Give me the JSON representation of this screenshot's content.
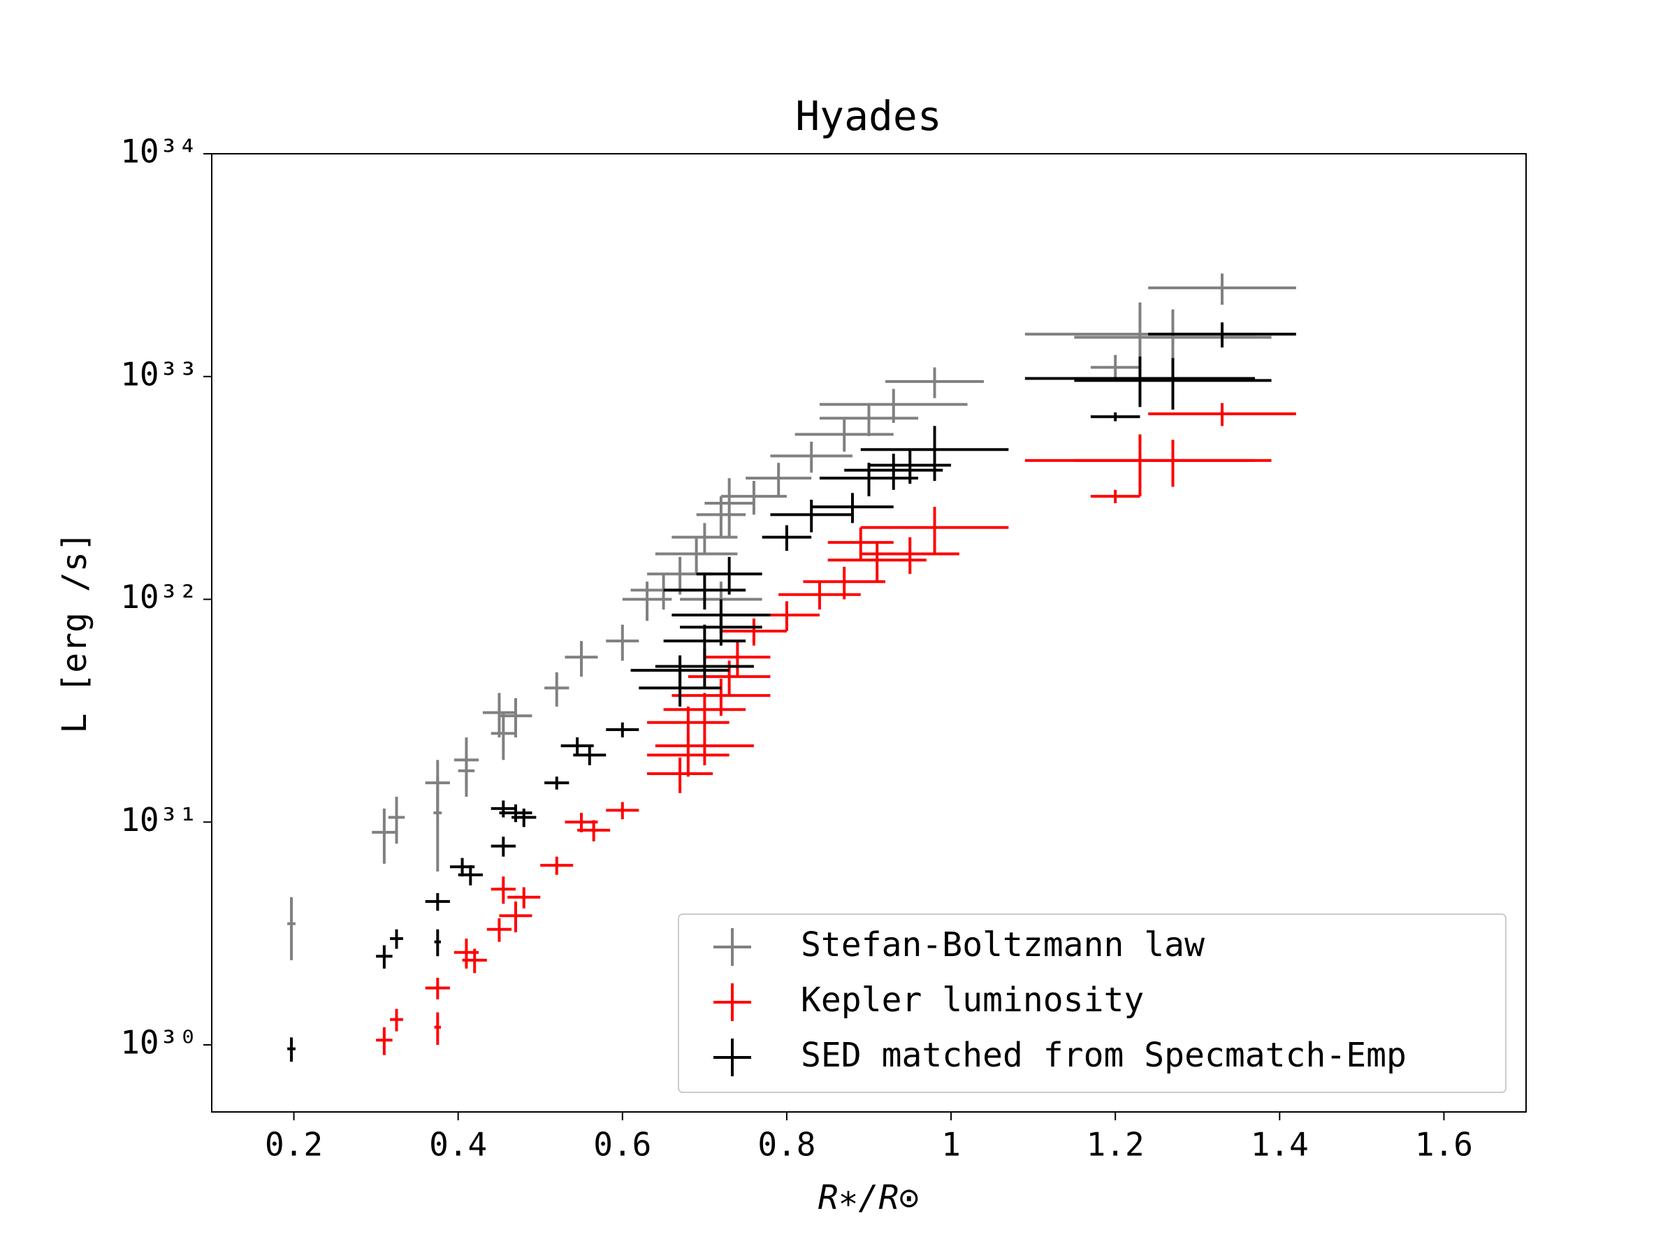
{
  "chart_data": {
    "type": "errorbar",
    "title": "Hyades",
    "x_label": "R∗/R⊙",
    "y_label": "L [erg /s]",
    "xlim": [
      0.1,
      1.7
    ],
    "xticks": [
      0.2,
      0.4,
      0.6,
      0.8,
      1.0,
      1.2,
      1.4,
      1.6
    ],
    "ylim": [
      5e+29,
      1e+34
    ],
    "y_scale": "log",
    "yticks": [
      {
        "value": 1e+30,
        "label": "10³⁰"
      },
      {
        "value": 1e+31,
        "label": "10³¹"
      },
      {
        "value": 1e+32,
        "label": "10³²"
      },
      {
        "value": 1e+33,
        "label": "10³³"
      },
      {
        "value": 1e+34,
        "label": "10³⁴"
      }
    ],
    "legend": "lower right",
    "series": [
      {
        "name": "Stefan-Boltzmann law",
        "color": "#808080",
        "x": [
          0.197,
          0.31,
          0.325,
          0.375,
          0.375,
          0.41,
          0.41,
          0.45,
          0.455,
          0.47,
          0.52,
          0.55,
          0.6,
          0.65,
          0.67,
          0.69,
          0.7,
          0.72,
          0.73,
          0.76,
          0.79,
          0.83,
          0.87,
          0.9,
          0.93,
          0.98,
          0.72,
          0.63,
          1.2,
          1.23,
          1.27,
          1.33
        ],
        "values": [
          3.5e+30,
          9e+30,
          1.05e+31,
          1.5e+31,
          1.1e+31,
          1.9e+31,
          1.7e+31,
          3.1e+31,
          2.5e+31,
          3e+31,
          4e+31,
          5.5e+31,
          6.5e+31,
          1.1e+32,
          1.3e+32,
          1.6e+32,
          1.9e+32,
          2.4e+32,
          2.7e+32,
          2.9e+32,
          3.5e+32,
          4.4e+32,
          5.5e+32,
          6.5e+32,
          7.5e+32,
          9.5e+32,
          1e+32,
          1e+32,
          1.1e+33,
          1.55e+33,
          1.5e+33,
          2.5e+33
        ],
        "xerr": [
          0.005,
          0.015,
          0.01,
          0.015,
          0.005,
          0.015,
          0.01,
          0.02,
          0.015,
          0.02,
          0.015,
          0.02,
          0.02,
          0.04,
          0.04,
          0.05,
          0.04,
          0.03,
          0.03,
          0.04,
          0.04,
          0.05,
          0.06,
          0.06,
          0.09,
          0.06,
          0.05,
          0.03,
          0.03,
          0.14,
          0.12,
          0.09
        ],
        "yerr": [
          1.1e+30,
          2.5e+30,
          2.5e+30,
          4e+30,
          5e+30,
          5e+30,
          4e+30,
          7e+30,
          6e+30,
          6e+30,
          7e+30,
          1e+31,
          1.2e+31,
          2e+31,
          2.5e+31,
          3e+31,
          3e+31,
          5e+31,
          8e+31,
          5e+31,
          6e+31,
          7e+31,
          9e+31,
          1.1e+32,
          1.3e+32,
          1.5e+32,
          2e+31,
          2e+31,
          1.5e+32,
          6e+32,
          5e+32,
          4e+32
        ]
      },
      {
        "name": "Kepler luminosity",
        "color": "#ff0000",
        "x": [
          0.31,
          0.325,
          0.375,
          0.375,
          0.41,
          0.42,
          0.45,
          0.455,
          0.47,
          0.48,
          0.52,
          0.55,
          0.565,
          0.6,
          0.67,
          0.68,
          0.7,
          0.68,
          0.7,
          0.72,
          0.73,
          0.74,
          0.76,
          0.8,
          0.84,
          0.87,
          0.89,
          0.91,
          0.95,
          0.98,
          1.2,
          1.23,
          1.27,
          1.33
        ],
        "values": [
          1.05e+30,
          1.3e+30,
          1.2e+30,
          1.8e+30,
          2.6e+30,
          2.4e+30,
          3.3e+30,
          5e+30,
          3.8e+30,
          4.6e+30,
          6.4e+30,
          1e+31,
          9.2e+30,
          1.13e+31,
          1.65e+31,
          2e+31,
          2.2e+31,
          2.8e+31,
          3.2e+31,
          3.7e+31,
          4.5e+31,
          5.5e+31,
          7.2e+31,
          8.5e+31,
          1.05e+32,
          1.2e+32,
          1.8e+32,
          1.5e+32,
          1.6e+32,
          2.1e+32,
          2.9e+32,
          4.2e+32,
          4.2e+32,
          6.8e+32
        ],
        "xerr": [
          0.01,
          0.008,
          0.004,
          0.015,
          0.015,
          0.015,
          0.015,
          0.015,
          0.02,
          0.02,
          0.02,
          0.02,
          0.02,
          0.02,
          0.04,
          0.05,
          0.06,
          0.05,
          0.05,
          0.06,
          0.05,
          0.04,
          0.04,
          0.04,
          0.05,
          0.05,
          0.04,
          0.06,
          0.06,
          0.09,
          0.03,
          0.14,
          0.12,
          0.09
        ],
        "yerr": [
          1.5e+29,
          1.5e+29,
          2e+29,
          2e+29,
          4e+29,
          3e+29,
          4e+29,
          7e+29,
          6e+29,
          5e+29,
          6e+29,
          1e+30,
          1e+30,
          1e+30,
          3e+30,
          4e+30,
          4e+30,
          5e+30,
          6e+30,
          7e+30,
          8e+30,
          1e+31,
          1e+31,
          1.3e+31,
          1.5e+31,
          2e+31,
          3e+31,
          3e+31,
          3e+31,
          5e+31,
          2e+31,
          1.3e+32,
          1e+32,
          8e+31
        ]
      },
      {
        "name": "SED matched from Specmatch-Emp",
        "color": "#000000",
        "x": [
          0.197,
          0.31,
          0.325,
          0.375,
          0.375,
          0.405,
          0.415,
          0.455,
          0.455,
          0.47,
          0.48,
          0.52,
          0.545,
          0.56,
          0.6,
          0.67,
          0.67,
          0.7,
          0.7,
          0.72,
          0.72,
          0.7,
          0.73,
          0.8,
          0.83,
          0.88,
          0.9,
          0.93,
          0.95,
          0.98,
          1.2,
          1.23,
          1.27,
          1.33
        ],
        "values": [
          9.6e+29,
          2.5e+30,
          3e+30,
          2.9e+30,
          4.4e+30,
          6.3e+30,
          5.8e+30,
          7.8e+30,
          1.15e+31,
          1.1e+31,
          1.05e+31,
          1.5e+31,
          2.2e+31,
          2e+31,
          2.6e+31,
          4e+31,
          4.8e+31,
          5e+31,
          6.5e+31,
          7.5e+31,
          8.5e+31,
          1.1e+32,
          1.3e+32,
          1.9e+32,
          2.4e+32,
          2.6e+32,
          3.5e+32,
          3.8e+32,
          4e+32,
          4.7e+32,
          6.6e+32,
          9.8e+32,
          9.6e+32,
          1.55e+33
        ],
        "xerr": [
          0.005,
          0.01,
          0.008,
          0.004,
          0.015,
          0.015,
          0.015,
          0.015,
          0.015,
          0.02,
          0.015,
          0.015,
          0.02,
          0.02,
          0.02,
          0.05,
          0.06,
          0.06,
          0.05,
          0.05,
          0.06,
          0.05,
          0.04,
          0.03,
          0.05,
          0.05,
          0.06,
          0.06,
          0.05,
          0.09,
          0.03,
          0.14,
          0.12,
          0.09
        ],
        "yerr": [
          1.2e+29,
          3e+29,
          3e+29,
          4e+29,
          4e+29,
          6e+29,
          6e+29,
          8e+29,
          1e+30,
          1e+30,
          1e+30,
          1e+30,
          2e+30,
          2e+30,
          2e+30,
          7e+30,
          8e+30,
          1e+31,
          1.2e+31,
          1.3e+31,
          1.5e+31,
          2e+31,
          2.5e+31,
          2.5e+31,
          4e+31,
          4e+31,
          6e+31,
          7e+31,
          7e+31,
          1.3e+32,
          3e+31,
          2.5e+32,
          2.5e+32,
          2e+32
        ]
      }
    ]
  }
}
